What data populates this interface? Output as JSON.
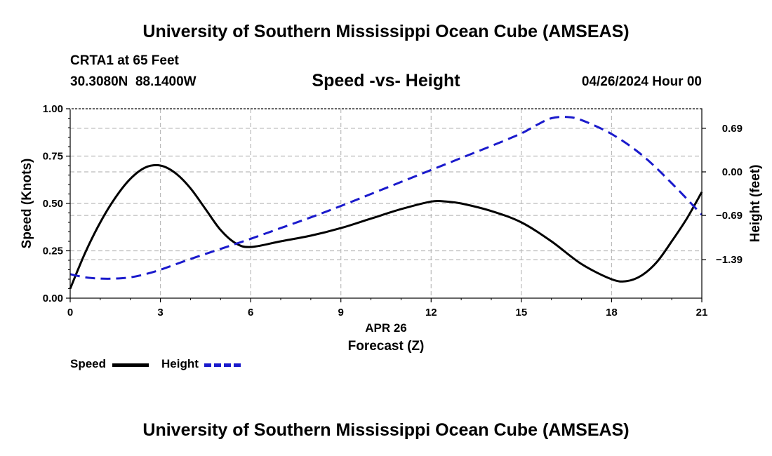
{
  "header": {
    "title_top": "University of Southern Mississippi Ocean Cube (AMSEAS)",
    "station": "CRTA1 at 65 Feet",
    "coords": "30.3080N  88.1400W",
    "chart_title": "Speed -vs- Height",
    "datetime": "04/26/2024 Hour 00",
    "title_bottom": "University of Southern Mississippi Ocean Cube (AMSEAS)"
  },
  "legend": {
    "speed_label": "Speed",
    "height_label": "Height"
  },
  "colors": {
    "speed": "#000000",
    "height": "#1a1acc",
    "grid": "#bbbbbb"
  },
  "chart_data": {
    "type": "line",
    "title": "Speed -vs- Height",
    "xlabel": "Forecast (Z)",
    "xlabel_date": "APR 26",
    "ylabel": "Speed (Knots)",
    "y2label": "Height (feet)",
    "xlim": [
      0,
      21
    ],
    "ylim": [
      0,
      1.0
    ],
    "y2lim": [
      -2.0,
      1.0
    ],
    "x_ticks": [
      "0",
      "3",
      "6",
      "9",
      "12",
      "15",
      "18",
      "21"
    ],
    "x_tick_values": [
      0,
      3,
      6,
      9,
      12,
      15,
      18,
      21
    ],
    "y_ticks": [
      "0.00",
      "0.25",
      "0.50",
      "0.75",
      "1.00"
    ],
    "y_tick_values": [
      0,
      0.25,
      0.5,
      0.75,
      1.0
    ],
    "y2_ticks": [
      "0.69",
      "0.00",
      "-0.69",
      "-1.39"
    ],
    "y2_tick_values": [
      0.69,
      0.0,
      -0.69,
      -1.39
    ],
    "grid": true,
    "series": [
      {
        "name": "Speed",
        "axis": "left",
        "style": "solid",
        "x": [
          0,
          0.5,
          1,
          1.5,
          2,
          2.5,
          3,
          3.5,
          4,
          4.5,
          5,
          5.5,
          6,
          7,
          8,
          9,
          10,
          11,
          12,
          12.5,
          13,
          14,
          15,
          16,
          17,
          18,
          18.5,
          19,
          19.5,
          20,
          20.5,
          21
        ],
        "values": [
          0.05,
          0.24,
          0.4,
          0.53,
          0.63,
          0.69,
          0.7,
          0.66,
          0.58,
          0.47,
          0.36,
          0.29,
          0.27,
          0.3,
          0.33,
          0.37,
          0.42,
          0.47,
          0.51,
          0.51,
          0.5,
          0.46,
          0.4,
          0.3,
          0.18,
          0.1,
          0.09,
          0.12,
          0.19,
          0.3,
          0.42,
          0.56
        ]
      },
      {
        "name": "Height",
        "axis": "right",
        "style": "dashed",
        "x": [
          0,
          0.5,
          1,
          1.5,
          2,
          2.5,
          3,
          4,
          5,
          6,
          7,
          8,
          9,
          10,
          11,
          12,
          13,
          14,
          15,
          15.5,
          16,
          16.5,
          17,
          18,
          19,
          20,
          21
        ],
        "values": [
          -1.62,
          -1.67,
          -1.69,
          -1.69,
          -1.67,
          -1.62,
          -1.55,
          -1.38,
          -1.22,
          -1.06,
          -0.89,
          -0.72,
          -0.54,
          -0.35,
          -0.16,
          0.03,
          0.22,
          0.41,
          0.61,
          0.74,
          0.85,
          0.87,
          0.82,
          0.6,
          0.27,
          -0.18,
          -0.68
        ]
      }
    ]
  }
}
